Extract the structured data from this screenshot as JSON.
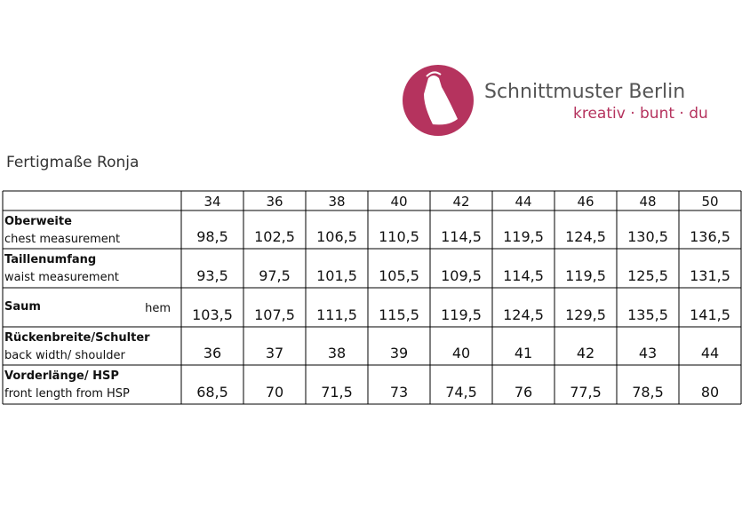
{
  "logo": {
    "name": "Schnittmuster Berlin",
    "tagline": "kreativ · bunt · du"
  },
  "title": "Fertigmaße Ronja",
  "table": {
    "sizes": [
      "34",
      "36",
      "38",
      "40",
      "42",
      "44",
      "46",
      "48",
      "50"
    ],
    "rows": [
      {
        "label": "Oberweite",
        "sublabel": "chest measurement",
        "values": [
          "98,5",
          "102,5",
          "106,5",
          "110,5",
          "114,5",
          "119,5",
          "124,5",
          "130,5",
          "136,5"
        ]
      },
      {
        "label": "Taillenumfang",
        "sublabel": "waist measurement",
        "values": [
          "93,5",
          "97,5",
          "101,5",
          "105,5",
          "109,5",
          "114,5",
          "119,5",
          "125,5",
          "131,5"
        ]
      },
      {
        "label": "Saum",
        "sublabel": "hem",
        "values": [
          "103,5",
          "107,5",
          "111,5",
          "115,5",
          "119,5",
          "124,5",
          "129,5",
          "135,5",
          "141,5"
        ]
      },
      {
        "label": "Rückenbreite/Schulter",
        "sublabel": "back width/ shoulder",
        "values": [
          "36",
          "37",
          "38",
          "39",
          "40",
          "41",
          "42",
          "43",
          "44"
        ]
      },
      {
        "label": "Vorderlänge/ HSP",
        "sublabel": "front length from HSP",
        "values": [
          "68,5",
          "70",
          "71,5",
          "73",
          "74,5",
          "76",
          "77,5",
          "78,5",
          "80"
        ]
      }
    ]
  }
}
